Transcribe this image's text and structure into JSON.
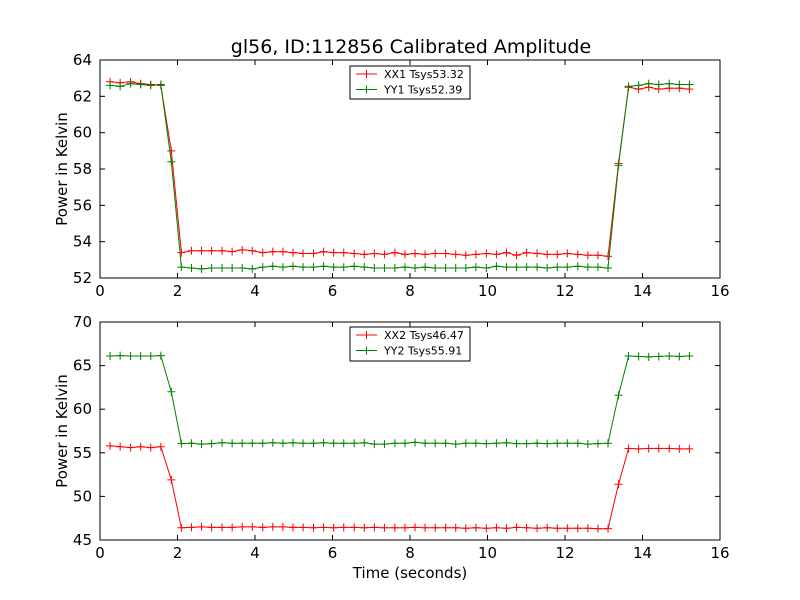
{
  "figure": {
    "title": "gl56, ID:112856 Calibrated Amplitude",
    "xlabel": "Time (seconds)"
  },
  "chart_data": [
    {
      "type": "line",
      "ylabel": "Power in Kelvin",
      "xlim": [
        0,
        16
      ],
      "ylim": [
        52,
        64
      ],
      "xticks": [
        0,
        2,
        4,
        6,
        8,
        10,
        12,
        14,
        16
      ],
      "yticks": [
        52,
        54,
        56,
        58,
        60,
        62,
        64
      ],
      "show_xlabel": false,
      "legend": "top-center",
      "series": [
        {
          "name": "XX1 Tsys53.32",
          "color": "#ff0000",
          "x": [
            0.26,
            0.52,
            0.79,
            1.05,
            1.31,
            1.57,
            1.84,
            2.1,
            2.36,
            2.62,
            2.88,
            3.15,
            3.41,
            3.67,
            3.93,
            4.2,
            4.46,
            4.72,
            4.98,
            5.24,
            5.51,
            5.77,
            6.03,
            6.29,
            6.56,
            6.82,
            7.08,
            7.34,
            7.61,
            7.87,
            8.13,
            8.39,
            8.65,
            8.92,
            9.18,
            9.44,
            9.7,
            9.97,
            10.23,
            10.49,
            10.75,
            11.01,
            11.28,
            11.54,
            11.8,
            12.06,
            12.33,
            12.59,
            12.85,
            13.11,
            13.38,
            13.64,
            13.9,
            14.16,
            14.42,
            14.69,
            14.95,
            15.21
          ],
          "values": [
            62.8,
            62.75,
            62.8,
            62.7,
            62.65,
            62.6,
            59.0,
            53.4,
            53.5,
            53.5,
            53.5,
            53.5,
            53.45,
            53.55,
            53.5,
            53.4,
            53.45,
            53.45,
            53.4,
            53.35,
            53.35,
            53.45,
            53.4,
            53.4,
            53.35,
            53.3,
            53.35,
            53.3,
            53.4,
            53.3,
            53.35,
            53.3,
            53.35,
            53.35,
            53.3,
            53.25,
            53.3,
            53.35,
            53.3,
            53.4,
            53.25,
            53.4,
            53.35,
            53.3,
            53.3,
            53.35,
            53.3,
            53.25,
            53.25,
            53.2,
            58.3,
            62.5,
            62.4,
            62.5,
            62.4,
            62.45,
            62.45,
            62.4
          ]
        },
        {
          "name": "YY1 Tsys52.39",
          "color": "#008000",
          "x": [
            0.26,
            0.52,
            0.79,
            1.05,
            1.31,
            1.57,
            1.84,
            2.1,
            2.36,
            2.62,
            2.88,
            3.15,
            3.41,
            3.67,
            3.93,
            4.2,
            4.46,
            4.72,
            4.98,
            5.24,
            5.51,
            5.77,
            6.03,
            6.29,
            6.56,
            6.82,
            7.08,
            7.34,
            7.61,
            7.87,
            8.13,
            8.39,
            8.65,
            8.92,
            9.18,
            9.44,
            9.7,
            9.97,
            10.23,
            10.49,
            10.75,
            11.01,
            11.28,
            11.54,
            11.8,
            12.06,
            12.33,
            12.59,
            12.85,
            13.11,
            13.38,
            13.64,
            13.9,
            14.16,
            14.42,
            14.69,
            14.95,
            15.21
          ],
          "values": [
            62.6,
            62.55,
            62.7,
            62.65,
            62.6,
            62.65,
            58.4,
            52.6,
            52.55,
            52.5,
            52.55,
            52.55,
            52.55,
            52.55,
            52.5,
            52.6,
            52.65,
            52.6,
            52.65,
            52.6,
            52.6,
            52.65,
            52.6,
            52.6,
            52.65,
            52.6,
            52.55,
            52.55,
            52.55,
            52.6,
            52.55,
            52.6,
            52.55,
            52.55,
            52.55,
            52.55,
            52.6,
            52.55,
            52.65,
            52.6,
            52.6,
            52.6,
            52.6,
            52.55,
            52.6,
            52.6,
            52.65,
            52.6,
            52.6,
            52.55,
            58.2,
            62.55,
            62.6,
            62.7,
            62.65,
            62.7,
            62.65,
            62.65
          ]
        }
      ]
    },
    {
      "type": "line",
      "ylabel": "Power in Kelvin",
      "xlim": [
        0,
        16
      ],
      "ylim": [
        45,
        70
      ],
      "xticks": [
        0,
        2,
        4,
        6,
        8,
        10,
        12,
        14,
        16
      ],
      "yticks": [
        45,
        50,
        55,
        60,
        65,
        70
      ],
      "show_xlabel": true,
      "legend": "top-center",
      "series": [
        {
          "name": "XX2 Tsys46.47",
          "color": "#ff0000",
          "x": [
            0.26,
            0.52,
            0.79,
            1.05,
            1.31,
            1.57,
            1.84,
            2.1,
            2.36,
            2.62,
            2.88,
            3.15,
            3.41,
            3.67,
            3.93,
            4.2,
            4.46,
            4.72,
            4.98,
            5.24,
            5.51,
            5.77,
            6.03,
            6.29,
            6.56,
            6.82,
            7.08,
            7.34,
            7.61,
            7.87,
            8.13,
            8.39,
            8.65,
            8.92,
            9.18,
            9.44,
            9.7,
            9.97,
            10.23,
            10.49,
            10.75,
            11.01,
            11.28,
            11.54,
            11.8,
            12.06,
            12.33,
            12.59,
            12.85,
            13.11,
            13.38,
            13.64,
            13.9,
            14.16,
            14.42,
            14.69,
            14.95,
            15.21
          ],
          "values": [
            55.8,
            55.7,
            55.6,
            55.7,
            55.6,
            55.7,
            51.9,
            46.4,
            46.45,
            46.5,
            46.45,
            46.45,
            46.45,
            46.5,
            46.5,
            46.45,
            46.5,
            46.5,
            46.45,
            46.45,
            46.4,
            46.45,
            46.4,
            46.45,
            46.45,
            46.4,
            46.45,
            46.4,
            46.4,
            46.4,
            46.45,
            46.4,
            46.4,
            46.4,
            46.4,
            46.35,
            46.4,
            46.35,
            46.4,
            46.35,
            46.45,
            46.4,
            46.35,
            46.4,
            46.35,
            46.35,
            46.35,
            46.35,
            46.3,
            46.3,
            51.4,
            55.5,
            55.45,
            55.5,
            55.5,
            55.5,
            55.45,
            55.45
          ]
        },
        {
          "name": "YY2 Tsys55.91",
          "color": "#008000",
          "x": [
            0.26,
            0.52,
            0.79,
            1.05,
            1.31,
            1.57,
            1.84,
            2.1,
            2.36,
            2.62,
            2.88,
            3.15,
            3.41,
            3.67,
            3.93,
            4.2,
            4.46,
            4.72,
            4.98,
            5.24,
            5.51,
            5.77,
            6.03,
            6.29,
            6.56,
            6.82,
            7.08,
            7.34,
            7.61,
            7.87,
            8.13,
            8.39,
            8.65,
            8.92,
            9.18,
            9.44,
            9.7,
            9.97,
            10.23,
            10.49,
            10.75,
            11.01,
            11.28,
            11.54,
            11.8,
            12.06,
            12.33,
            12.59,
            12.85,
            13.11,
            13.38,
            13.64,
            13.9,
            14.16,
            14.42,
            14.69,
            14.95,
            15.21
          ],
          "values": [
            66.1,
            66.15,
            66.1,
            66.1,
            66.1,
            66.15,
            62.0,
            56.05,
            56.1,
            56.0,
            56.05,
            56.15,
            56.1,
            56.1,
            56.1,
            56.1,
            56.15,
            56.1,
            56.15,
            56.1,
            56.1,
            56.15,
            56.1,
            56.1,
            56.1,
            56.15,
            56.0,
            56.0,
            56.1,
            56.1,
            56.2,
            56.1,
            56.1,
            56.1,
            56.0,
            56.1,
            56.1,
            56.05,
            56.1,
            56.15,
            56.05,
            56.05,
            56.1,
            56.05,
            56.1,
            56.1,
            56.1,
            56.0,
            56.05,
            56.1,
            61.6,
            66.1,
            66.05,
            66.0,
            66.05,
            66.1,
            66.05,
            66.1
          ]
        }
      ]
    }
  ]
}
